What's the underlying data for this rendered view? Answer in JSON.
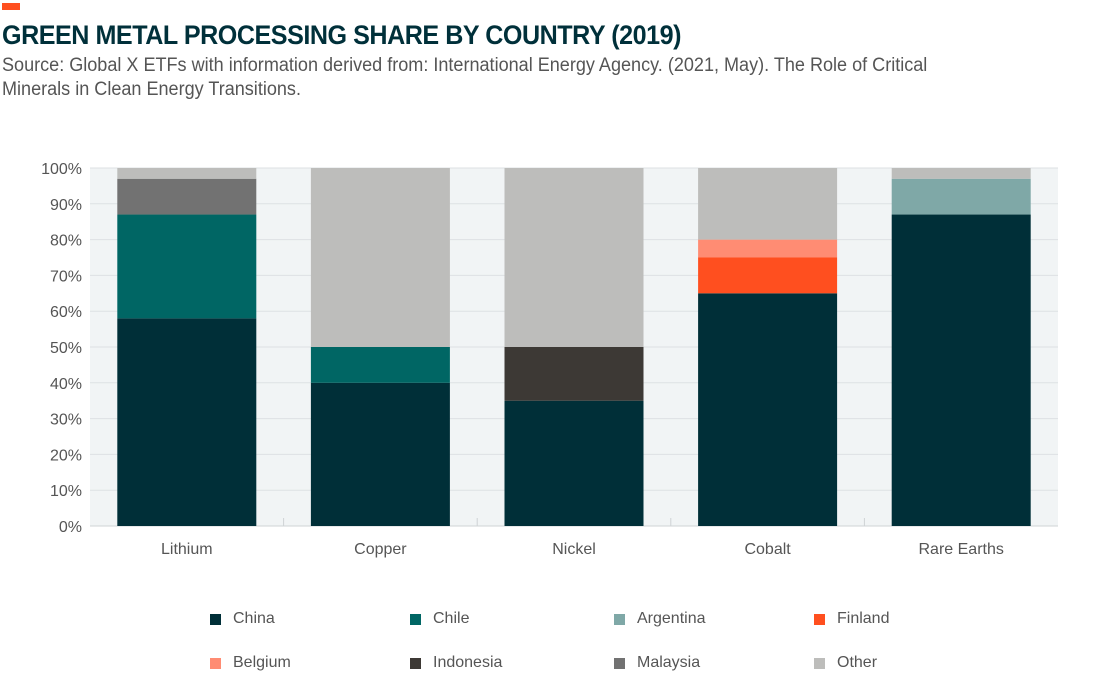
{
  "title": "GREEN METAL PROCESSING SHARE BY COUNTRY (2019)",
  "subtitle": "Source: Global X ETFs with information derived from: International Energy Agency. (2021, May). The Role of Critical Minerals in Clean Energy Transitions.",
  "chart_data": {
    "type": "bar",
    "stacked": true,
    "categories": [
      "Lithium",
      "Copper",
      "Nickel",
      "Cobalt",
      "Rare Earths"
    ],
    "ylim": [
      0,
      100
    ],
    "yticks": [
      "0%",
      "10%",
      "20%",
      "30%",
      "40%",
      "50%",
      "60%",
      "70%",
      "80%",
      "90%",
      "100%"
    ],
    "grid": true,
    "legend_position": "bottom",
    "series": [
      {
        "name": "China",
        "color": "#002f38",
        "values": [
          58,
          40,
          35,
          65,
          87
        ]
      },
      {
        "name": "Chile",
        "color": "#006664",
        "values": [
          29,
          10,
          0,
          0,
          0
        ]
      },
      {
        "name": "Argentina",
        "color": "#7fa8a7",
        "values": [
          0,
          0,
          0,
          0,
          10
        ]
      },
      {
        "name": "Finland",
        "color": "#ff4f1f",
        "values": [
          0,
          0,
          0,
          10,
          0
        ]
      },
      {
        "name": "Belgium",
        "color": "#ff8c73",
        "values": [
          0,
          0,
          0,
          5,
          0
        ]
      },
      {
        "name": "Indonesia",
        "color": "#3d3935",
        "values": [
          0,
          0,
          15,
          0,
          0
        ]
      },
      {
        "name": "Malaysia",
        "color": "#727272",
        "values": [
          10,
          0,
          0,
          0,
          0
        ]
      },
      {
        "name": "Other",
        "color": "#bdbdbb",
        "values": [
          3,
          50,
          50,
          20,
          3
        ]
      }
    ]
  }
}
